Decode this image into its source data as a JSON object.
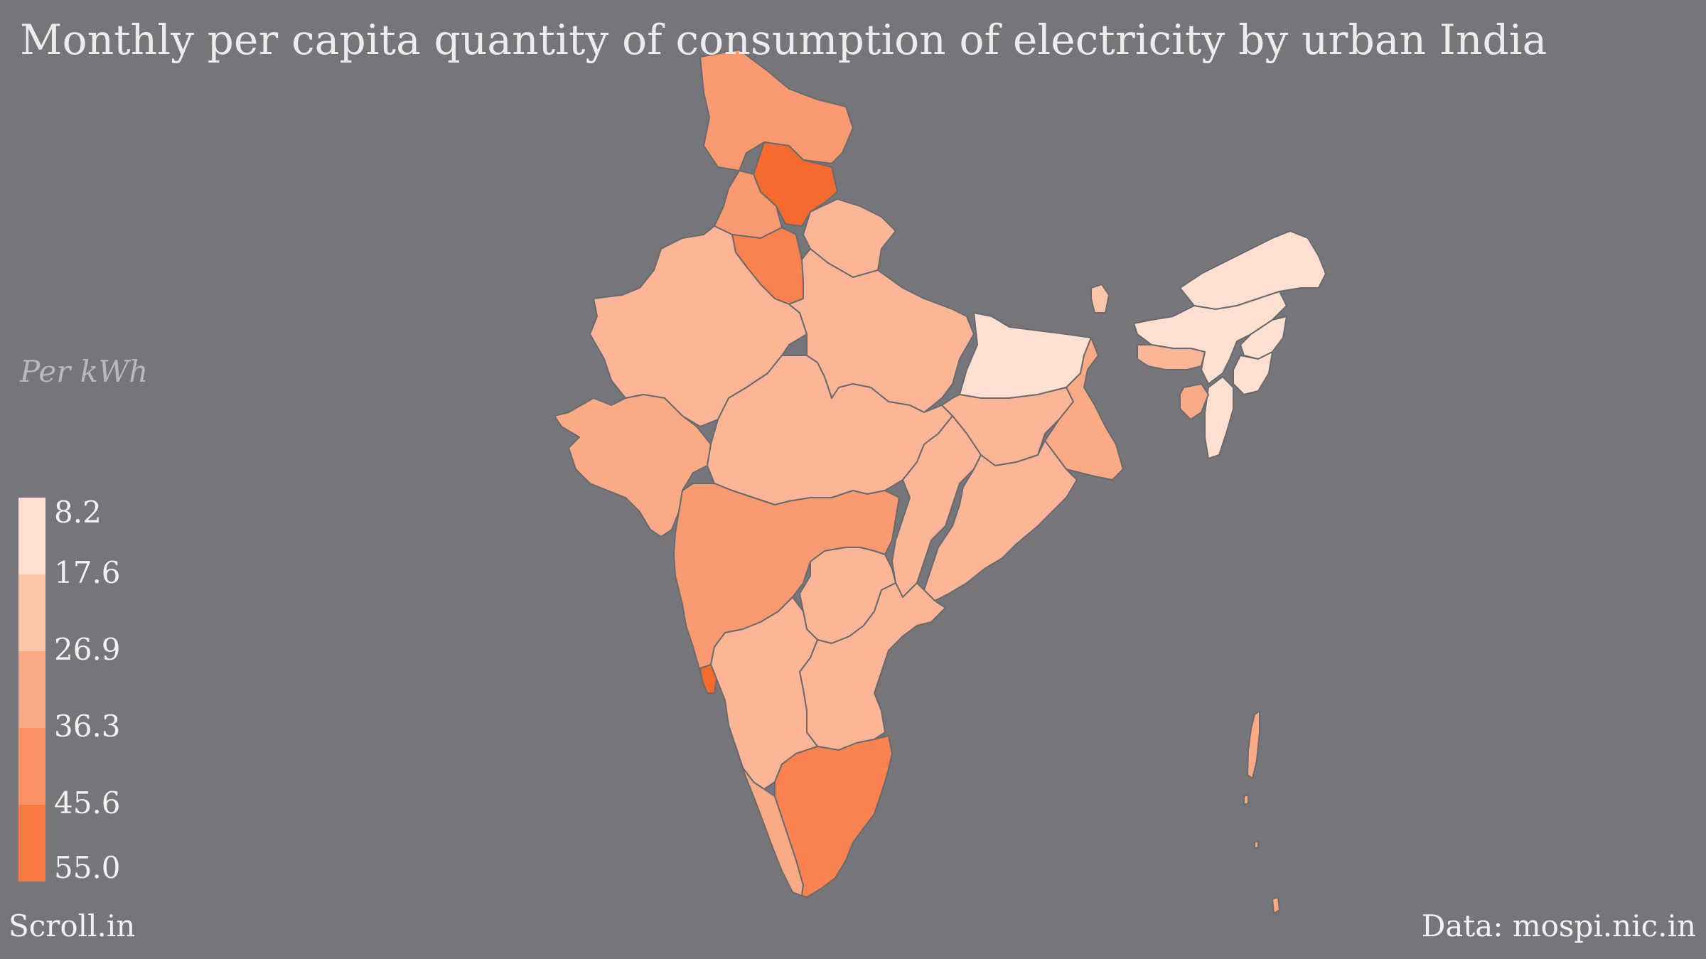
{
  "title": "Monthly per capita quantity of consumption of electricity by urban India",
  "unit_label": "Per kWh",
  "legend": {
    "ticks": [
      "8.2",
      "17.6",
      "26.9",
      "36.3",
      "45.6",
      "55.0"
    ],
    "colors": [
      "#fde0d2",
      "#fcc4a8",
      "#fbaa86",
      "#fa9064",
      "#f97a44",
      "#f76a2d"
    ]
  },
  "colors": {
    "background": "#75767b",
    "border": "#6a6a6e"
  },
  "footer": {
    "source_left": "Scroll.in",
    "source_right": "Data: mospi.nic.in"
  },
  "map_regions": [
    {
      "name": "Jammu and Kashmir",
      "color": "#fa9a70"
    },
    {
      "name": "Himachal Pradesh",
      "color": "#f76a2d"
    },
    {
      "name": "Punjab",
      "color": "#fa9a70"
    },
    {
      "name": "Haryana",
      "color": "#f98350"
    },
    {
      "name": "Uttarakhand",
      "color": "#fcb697"
    },
    {
      "name": "Rajasthan",
      "color": "#fcb697"
    },
    {
      "name": "Uttar Pradesh",
      "color": "#fcb697"
    },
    {
      "name": "Bihar",
      "color": "#fde0d2"
    },
    {
      "name": "Gujarat",
      "color": "#fbaa86"
    },
    {
      "name": "Madhya Pradesh",
      "color": "#fcb697"
    },
    {
      "name": "Jharkhand",
      "color": "#fcb697"
    },
    {
      "name": "West Bengal",
      "color": "#fbaa86"
    },
    {
      "name": "Chhattisgarh",
      "color": "#fcb697"
    },
    {
      "name": "Odisha",
      "color": "#fcb697"
    },
    {
      "name": "Maharashtra",
      "color": "#fa9a70"
    },
    {
      "name": "Telangana",
      "color": "#fcb697"
    },
    {
      "name": "Andhra Pradesh",
      "color": "#fcb697"
    },
    {
      "name": "Goa",
      "color": "#f76a2d"
    },
    {
      "name": "Karnataka",
      "color": "#fcb697"
    },
    {
      "name": "Kerala",
      "color": "#fbaa86"
    },
    {
      "name": "Tamil Nadu",
      "color": "#f98350"
    },
    {
      "name": "Sikkim",
      "color": "#fcc4a8"
    },
    {
      "name": "Assam",
      "color": "#fde0d2"
    },
    {
      "name": "Meghalaya",
      "color": "#fcb697"
    },
    {
      "name": "Arunachal Pradesh",
      "color": "#fde0d2"
    },
    {
      "name": "Nagaland",
      "color": "#fde0d2"
    },
    {
      "name": "Manipur",
      "color": "#fde0d2"
    },
    {
      "name": "Mizoram",
      "color": "#fde0d2"
    },
    {
      "name": "Tripura",
      "color": "#fbaa86"
    },
    {
      "name": "Andaman and Nicobar",
      "color": "#fbaa86"
    }
  ]
}
